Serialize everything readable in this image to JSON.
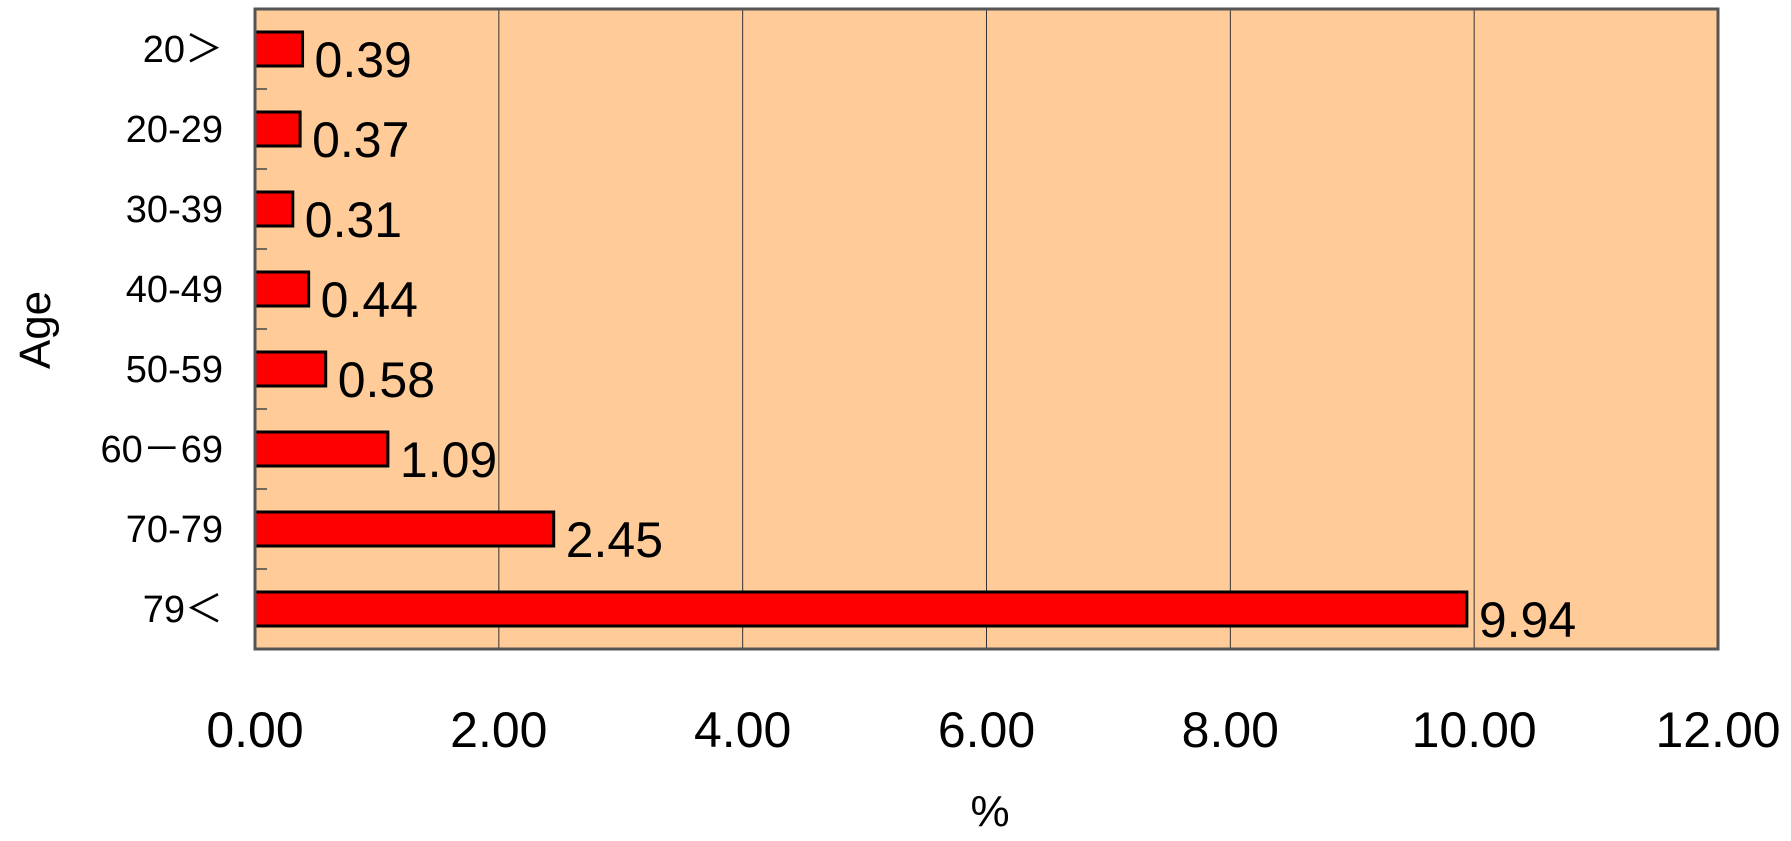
{
  "chart_data": {
    "type": "bar",
    "orientation": "horizontal",
    "categories": [
      "20＞",
      "20-29",
      "30-39",
      "40-49",
      "50-59",
      "60－69",
      "70-79",
      "79＜"
    ],
    "values": [
      0.39,
      0.37,
      0.31,
      0.44,
      0.58,
      1.09,
      2.45,
      9.94
    ],
    "data_labels": [
      "0.39",
      "0.37",
      "0.31",
      "0.44",
      "0.58",
      "1.09",
      "2.45",
      "9.94"
    ],
    "xlabel": "%",
    "ylabel": "Age",
    "xlim": [
      0,
      12
    ],
    "x_ticks": [
      "0.00",
      "2.00",
      "4.00",
      "6.00",
      "8.00",
      "10.00",
      "12.00"
    ],
    "grid": "vertical",
    "legend": "none",
    "colors": {
      "bar": "#ff0000",
      "bar_edge": "#000000",
      "plot_background": "#ffcc99",
      "gridline": "#333333"
    }
  }
}
